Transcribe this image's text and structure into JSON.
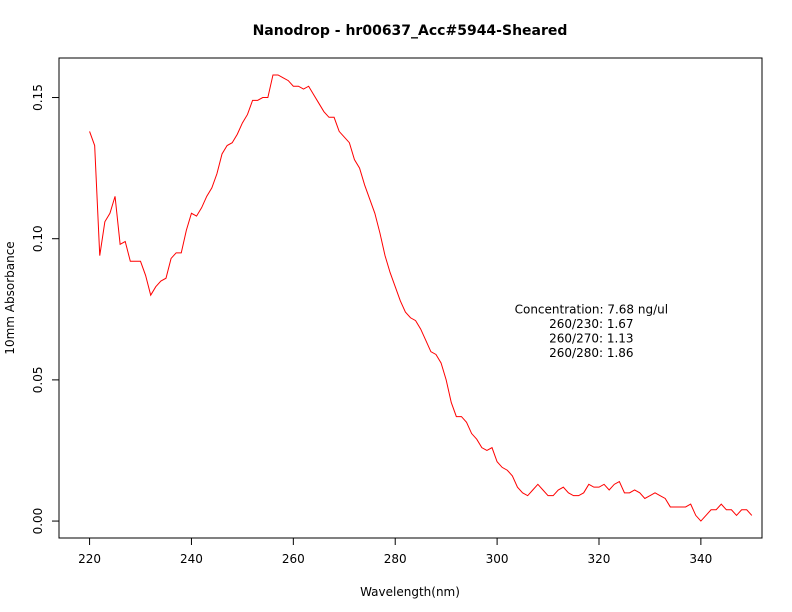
{
  "chart_data": {
    "type": "line",
    "title": "Nanodrop - hr00637_Acc#5944-Sheared",
    "xlabel": "Wavelength(nm)",
    "ylabel": "10mm Absorbance",
    "xlim": [
      214,
      352
    ],
    "ylim": [
      -0.006,
      0.164
    ],
    "x_ticks": [
      220,
      240,
      260,
      280,
      300,
      320,
      340
    ],
    "x_tick_labels": [
      "220",
      "240",
      "260",
      "280",
      "300",
      "320",
      "340"
    ],
    "y_ticks": [
      0.0,
      0.05,
      0.1,
      0.15
    ],
    "y_tick_labels": [
      "0.00",
      "0.05",
      "0.10",
      "0.15"
    ],
    "grid": false,
    "line_color": "#ff0000",
    "annotations": [
      "Concentration: 7.68 ng/ul",
      "260/230: 1.67",
      "260/270: 1.13",
      "260/280: 1.86"
    ],
    "series": [
      {
        "x": [
          220,
          221,
          222,
          223,
          224,
          225,
          226,
          227,
          228,
          229,
          230,
          231,
          232,
          233,
          234,
          235,
          236,
          237,
          238,
          239,
          240,
          241,
          242,
          243,
          244,
          245,
          246,
          247,
          248,
          249,
          250,
          251,
          252,
          253,
          254,
          255,
          256,
          257,
          258,
          259,
          260,
          261,
          262,
          263,
          264,
          265,
          266,
          267,
          268,
          269,
          270,
          271,
          272,
          273,
          274,
          275,
          276,
          277,
          278,
          279,
          280,
          281,
          282,
          283,
          284,
          285,
          286,
          287,
          288,
          289,
          290,
          291,
          292,
          293,
          294,
          295,
          296,
          297,
          298,
          299,
          300,
          301,
          302,
          303,
          304,
          305,
          306,
          307,
          308,
          309,
          310,
          311,
          312,
          313,
          314,
          315,
          316,
          317,
          318,
          319,
          320,
          321,
          322,
          323,
          324,
          325,
          326,
          327,
          328,
          329,
          330,
          331,
          332,
          333,
          334,
          335,
          336,
          337,
          338,
          339,
          340,
          341,
          342,
          343,
          344,
          345,
          346,
          347,
          348,
          349,
          350
        ],
        "y": [
          0.138,
          0.133,
          0.094,
          0.106,
          0.109,
          0.115,
          0.098,
          0.099,
          0.092,
          0.092,
          0.092,
          0.087,
          0.08,
          0.083,
          0.085,
          0.086,
          0.093,
          0.095,
          0.095,
          0.103,
          0.109,
          0.108,
          0.111,
          0.115,
          0.118,
          0.123,
          0.13,
          0.133,
          0.134,
          0.137,
          0.141,
          0.144,
          0.149,
          0.149,
          0.15,
          0.15,
          0.158,
          0.158,
          0.157,
          0.156,
          0.154,
          0.154,
          0.153,
          0.154,
          0.151,
          0.148,
          0.145,
          0.143,
          0.143,
          0.138,
          0.136,
          0.134,
          0.128,
          0.125,
          0.119,
          0.114,
          0.109,
          0.102,
          0.094,
          0.088,
          0.083,
          0.078,
          0.074,
          0.072,
          0.071,
          0.068,
          0.064,
          0.06,
          0.059,
          0.056,
          0.05,
          0.042,
          0.037,
          0.037,
          0.035,
          0.031,
          0.029,
          0.026,
          0.025,
          0.026,
          0.021,
          0.019,
          0.018,
          0.016,
          0.012,
          0.01,
          0.009,
          0.011,
          0.013,
          0.011,
          0.009,
          0.009,
          0.011,
          0.012,
          0.01,
          0.009,
          0.009,
          0.01,
          0.013,
          0.012,
          0.012,
          0.013,
          0.011,
          0.013,
          0.014,
          0.01,
          0.01,
          0.011,
          0.01,
          0.008,
          0.009,
          0.01,
          0.009,
          0.008,
          0.005,
          0.005,
          0.005,
          0.005,
          0.006,
          0.002,
          0.0,
          0.002,
          0.004,
          0.004,
          0.006,
          0.004,
          0.004,
          0.002,
          0.004,
          0.004,
          0.002
        ]
      }
    ]
  }
}
